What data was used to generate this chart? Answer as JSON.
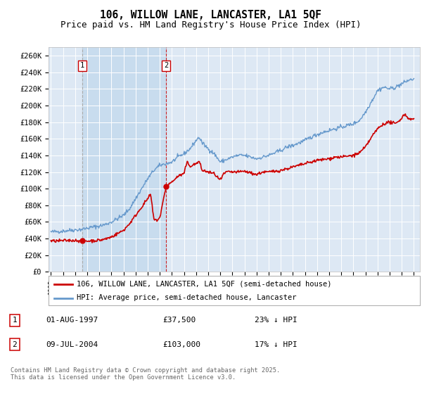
{
  "title": "106, WILLOW LANE, LANCASTER, LA1 5QF",
  "subtitle": "Price paid vs. HM Land Registry's House Price Index (HPI)",
  "ylim": [
    0,
    270000
  ],
  "yticks": [
    0,
    20000,
    40000,
    60000,
    80000,
    100000,
    120000,
    140000,
    160000,
    180000,
    200000,
    220000,
    240000,
    260000
  ],
  "sale1_date": 1997.58,
  "sale1_price": 37500,
  "sale1_label": "1",
  "sale2_date": 2004.52,
  "sale2_price": 103000,
  "sale2_label": "2",
  "legend_label_red": "106, WILLOW LANE, LANCASTER, LA1 5QF (semi-detached house)",
  "legend_label_blue": "HPI: Average price, semi-detached house, Lancaster",
  "annotation1_date": "01-AUG-1997",
  "annotation1_price": "£37,500",
  "annotation1_hpi": "23% ↓ HPI",
  "annotation2_date": "09-JUL-2004",
  "annotation2_price": "£103,000",
  "annotation2_hpi": "17% ↓ HPI",
  "footer": "Contains HM Land Registry data © Crown copyright and database right 2025.\nThis data is licensed under the Open Government Licence v3.0.",
  "red_color": "#cc0000",
  "blue_color": "#6699cc",
  "bg_plot": "#dde8f4",
  "bg_span": "#c8dcee",
  "grid_color": "#ffffff",
  "title_fontsize": 10.5,
  "subtitle_fontsize": 9
}
